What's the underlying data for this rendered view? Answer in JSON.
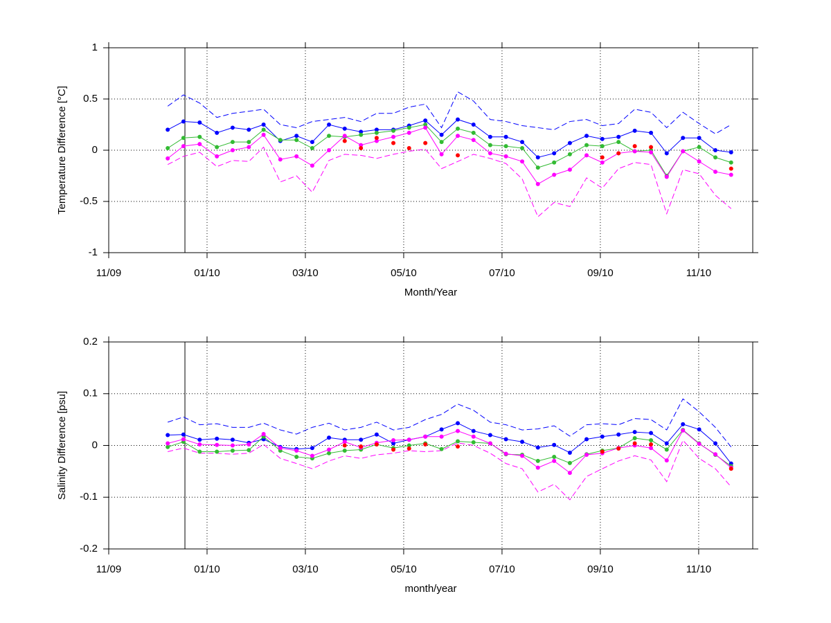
{
  "chart_data": [
    {
      "type": "line",
      "xlabel": "Month/Year",
      "ylabel": "Temperature Difference [°C]",
      "xlim": [
        0,
        13.1
      ],
      "xticks": [
        {
          "value": 0,
          "label": "11/09"
        },
        {
          "value": 2,
          "label": "01/10"
        },
        {
          "value": 4,
          "label": "03/10"
        },
        {
          "value": 6,
          "label": "05/10"
        },
        {
          "value": 8,
          "label": "07/10"
        },
        {
          "value": 10,
          "label": "09/10"
        },
        {
          "value": 12,
          "label": "11/10"
        }
      ],
      "ylim": [
        -1,
        1
      ],
      "yticks": [
        -1,
        -0.5,
        0,
        0.5,
        1
      ],
      "grid": true,
      "reference_x": 1.55,
      "x": [
        1.2,
        1.52,
        1.85,
        2.2,
        2.52,
        2.85,
        3.15,
        3.49,
        3.82,
        4.14,
        4.48,
        4.8,
        5.13,
        5.45,
        5.79,
        6.11,
        6.44,
        6.77,
        7.1,
        7.42,
        7.76,
        8.08,
        8.41,
        8.73,
        9.06,
        9.38,
        9.72,
        10.04,
        10.37,
        10.7,
        11.03,
        11.35,
        11.68,
        12.01,
        12.34,
        12.66
      ],
      "series": [
        {
          "color": "#0000ff",
          "style": "dashed",
          "values": [
            0.43,
            0.54,
            0.46,
            0.32,
            0.36,
            0.38,
            0.4,
            0.25,
            0.22,
            0.28,
            0.3,
            0.32,
            0.28,
            0.36,
            0.36,
            0.42,
            0.45,
            0.22,
            0.57,
            0.48,
            0.3,
            0.28,
            0.24,
            0.22,
            0.2,
            0.28,
            0.3,
            0.24,
            0.26,
            0.4,
            0.37,
            0.22,
            0.37,
            0.26,
            0.16,
            0.25
          ]
        },
        {
          "color": "#ff00ff",
          "style": "dashed",
          "values": [
            -0.14,
            -0.06,
            -0.02,
            -0.16,
            -0.1,
            -0.11,
            0.03,
            -0.31,
            -0.25,
            -0.41,
            -0.1,
            -0.04,
            -0.05,
            -0.08,
            -0.04,
            -0.01,
            0.01,
            -0.18,
            -0.11,
            -0.04,
            -0.08,
            -0.13,
            -0.28,
            -0.65,
            -0.51,
            -0.55,
            -0.27,
            -0.37,
            -0.18,
            -0.12,
            -0.14,
            -0.62,
            -0.19,
            -0.23,
            -0.44,
            -0.57
          ]
        },
        {
          "color": "#0000ff",
          "style": "solid",
          "values": [
            0.2,
            0.28,
            0.27,
            0.17,
            0.22,
            0.2,
            0.25,
            0.09,
            0.14,
            0.08,
            0.25,
            0.21,
            0.18,
            0.2,
            0.2,
            0.24,
            0.29,
            0.15,
            0.3,
            0.25,
            0.13,
            0.13,
            0.08,
            -0.07,
            -0.03,
            0.07,
            0.14,
            0.11,
            0.13,
            0.19,
            0.17,
            -0.03,
            0.12,
            0.12,
            0.0,
            -0.02
          ]
        },
        {
          "color": "#33bb33",
          "style": "solid",
          "values": [
            0.02,
            0.12,
            0.13,
            0.03,
            0.08,
            0.08,
            0.2,
            0.1,
            0.1,
            0.02,
            0.14,
            0.13,
            0.15,
            0.17,
            0.19,
            0.22,
            0.25,
            0.08,
            0.21,
            0.17,
            0.05,
            0.04,
            0.02,
            -0.17,
            -0.12,
            -0.04,
            0.05,
            0.04,
            0.08,
            -0.01,
            0.0,
            -0.25,
            -0.01,
            0.03,
            -0.07,
            -0.12
          ]
        },
        {
          "color": "#ff00ff",
          "style": "solid",
          "values": [
            -0.08,
            0.04,
            0.06,
            -0.06,
            0.0,
            0.03,
            0.15,
            -0.09,
            -0.06,
            -0.15,
            0.0,
            0.14,
            0.05,
            0.09,
            0.13,
            0.17,
            0.22,
            -0.04,
            0.14,
            0.1,
            -0.03,
            -0.06,
            -0.11,
            -0.33,
            -0.24,
            -0.19,
            -0.05,
            -0.12,
            -0.03,
            -0.01,
            -0.02,
            -0.26,
            -0.01,
            -0.11,
            -0.21,
            -0.24
          ]
        },
        {
          "color": "#ff0000",
          "style": "points",
          "x": [
            4.8,
            5.13,
            5.45,
            5.79,
            6.11,
            6.44,
            7.1,
            10.04,
            10.37,
            10.7,
            11.03,
            12.66
          ],
          "values": [
            0.09,
            0.02,
            0.12,
            0.07,
            0.02,
            0.07,
            -0.05,
            -0.07,
            -0.03,
            0.04,
            0.03,
            -0.18
          ]
        }
      ]
    },
    {
      "type": "line",
      "xlabel": "month/year",
      "ylabel": "Salinity Difference [psu]",
      "xlim": [
        0,
        13.1
      ],
      "xticks": [
        {
          "value": 0,
          "label": "11/09"
        },
        {
          "value": 2,
          "label": "01/10"
        },
        {
          "value": 4,
          "label": "03/10"
        },
        {
          "value": 6,
          "label": "05/10"
        },
        {
          "value": 8,
          "label": "07/10"
        },
        {
          "value": 10,
          "label": "09/10"
        },
        {
          "value": 12,
          "label": "11/10"
        }
      ],
      "ylim": [
        -0.2,
        0.2
      ],
      "yticks": [
        -0.2,
        -0.1,
        0,
        0.1,
        0.2
      ],
      "grid": true,
      "reference_x": 1.55,
      "x": [
        1.2,
        1.52,
        1.85,
        2.2,
        2.52,
        2.85,
        3.15,
        3.49,
        3.82,
        4.14,
        4.48,
        4.8,
        5.13,
        5.45,
        5.79,
        6.11,
        6.44,
        6.77,
        7.1,
        7.42,
        7.76,
        8.08,
        8.41,
        8.73,
        9.06,
        9.38,
        9.72,
        10.04,
        10.37,
        10.7,
        11.03,
        11.35,
        11.68,
        12.01,
        12.34,
        12.66
      ],
      "series": [
        {
          "color": "#0000ff",
          "style": "dashed",
          "values": [
            0.045,
            0.055,
            0.04,
            0.042,
            0.035,
            0.035,
            0.043,
            0.03,
            0.022,
            0.035,
            0.043,
            0.03,
            0.035,
            0.045,
            0.03,
            0.035,
            0.05,
            0.06,
            0.08,
            0.068,
            0.045,
            0.04,
            0.03,
            0.032,
            0.038,
            0.018,
            0.04,
            0.042,
            0.04,
            0.052,
            0.05,
            0.03,
            0.09,
            0.065,
            0.035,
            -0.003
          ]
        },
        {
          "color": "#ff00ff",
          "style": "dashed",
          "values": [
            -0.012,
            -0.005,
            -0.015,
            -0.015,
            -0.017,
            -0.015,
            0.002,
            -0.025,
            -0.035,
            -0.045,
            -0.03,
            -0.02,
            -0.025,
            -0.018,
            -0.015,
            -0.01,
            -0.012,
            -0.01,
            0.005,
            0.0,
            -0.015,
            -0.035,
            -0.045,
            -0.09,
            -0.075,
            -0.105,
            -0.06,
            -0.045,
            -0.03,
            -0.02,
            -0.028,
            -0.07,
            0.01,
            -0.025,
            -0.045,
            -0.08
          ]
        },
        {
          "color": "#0000ff",
          "style": "solid",
          "values": [
            0.02,
            0.021,
            0.011,
            0.013,
            0.011,
            0.005,
            0.012,
            -0.003,
            -0.007,
            -0.005,
            0.015,
            0.011,
            0.011,
            0.021,
            0.004,
            0.011,
            0.017,
            0.031,
            0.043,
            0.028,
            0.02,
            0.012,
            0.007,
            -0.004,
            0.001,
            -0.014,
            0.012,
            0.017,
            0.021,
            0.026,
            0.024,
            0.004,
            0.041,
            0.031,
            0.004,
            -0.035
          ]
        },
        {
          "color": "#33bb33",
          "style": "solid",
          "values": [
            -0.003,
            0.007,
            -0.012,
            -0.012,
            -0.01,
            -0.009,
            0.017,
            -0.01,
            -0.022,
            -0.025,
            -0.015,
            -0.01,
            -0.008,
            0.002,
            -0.005,
            0.0,
            0.004,
            -0.007,
            0.008,
            0.006,
            0.004,
            -0.017,
            -0.018,
            -0.03,
            -0.022,
            -0.034,
            -0.017,
            -0.01,
            -0.005,
            0.014,
            0.01,
            -0.008,
            0.03,
            0.004,
            -0.018,
            -0.04
          ]
        },
        {
          "color": "#ff00ff",
          "style": "solid",
          "values": [
            0.004,
            0.012,
            0.002,
            0.001,
            0.0,
            0.002,
            0.022,
            -0.005,
            -0.01,
            -0.02,
            -0.008,
            0.007,
            -0.004,
            0.005,
            0.01,
            0.011,
            0.017,
            0.017,
            0.028,
            0.017,
            0.004,
            -0.016,
            -0.02,
            -0.043,
            -0.03,
            -0.053,
            -0.018,
            -0.015,
            -0.005,
            0.0,
            -0.005,
            -0.029,
            0.029,
            0.003,
            -0.017,
            -0.043
          ]
        },
        {
          "color": "#ff0000",
          "style": "points",
          "x": [
            4.8,
            5.13,
            5.45,
            5.79,
            6.11,
            6.44,
            7.1,
            10.04,
            10.37,
            10.7,
            11.03,
            12.66
          ],
          "values": [
            0.0,
            -0.002,
            0.002,
            -0.008,
            -0.006,
            0.002,
            -0.002,
            -0.012,
            -0.006,
            0.004,
            0.002,
            -0.045
          ]
        }
      ]
    }
  ]
}
